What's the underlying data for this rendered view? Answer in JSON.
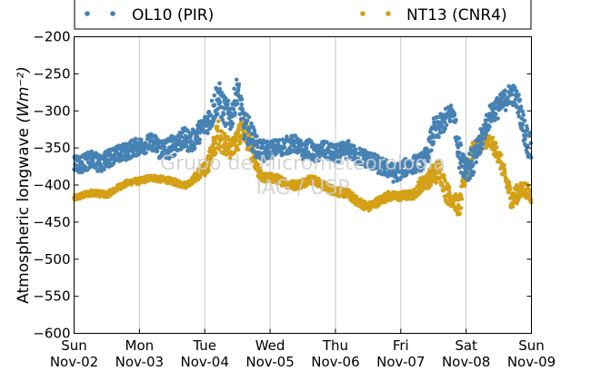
{
  "chart_data": {
    "type": "scatter",
    "ylabel": "Atmospheric longwave",
    "ylabel_unit": "(Wm⁻²)",
    "ylim": [
      -600,
      -200
    ],
    "yticks": [
      "−200",
      "−250",
      "−300",
      "−350",
      "−400",
      "−450",
      "−500",
      "−550",
      "−600"
    ],
    "ytick_values": [
      -200,
      -250,
      -300,
      -350,
      -400,
      -450,
      -500,
      -550,
      -600
    ],
    "xlim": [
      0,
      7
    ],
    "xticks": [
      {
        "day": "Sun",
        "date": "Nov-02"
      },
      {
        "day": "Mon",
        "date": "Nov-03"
      },
      {
        "day": "Tue",
        "date": "Nov-04"
      },
      {
        "day": "Wed",
        "date": "Nov-05"
      },
      {
        "day": "Thu",
        "date": "Nov-06"
      },
      {
        "day": "Fri",
        "date": "Nov-07"
      },
      {
        "day": "Sat",
        "date": "Nov-08"
      },
      {
        "day": "Sun",
        "date": "Nov-09"
      }
    ],
    "grid": "vertical",
    "legend_position": "top",
    "watermark": [
      "Grupo de Micrometeorologia",
      "IAG / USP"
    ],
    "series": [
      {
        "name": "OL10 (PIR)",
        "color": "#4682b4",
        "x": [
          0,
          0.1,
          0.2,
          0.3,
          0.4,
          0.5,
          0.6,
          0.7,
          0.8,
          0.9,
          1.0,
          1.1,
          1.2,
          1.3,
          1.4,
          1.5,
          1.6,
          1.7,
          1.8,
          1.9,
          2.0,
          2.1,
          2.2,
          2.3,
          2.4,
          2.5,
          2.6,
          2.7,
          2.8,
          2.9,
          3.0,
          3.1,
          3.2,
          3.3,
          3.4,
          3.5,
          3.6,
          3.7,
          3.8,
          3.9,
          4.0,
          4.1,
          4.2,
          4.3,
          4.4,
          4.5,
          4.6,
          4.7,
          4.8,
          4.9,
          5.0,
          5.1,
          5.2,
          5.3,
          5.4,
          5.5,
          5.6,
          5.7,
          5.8,
          5.9,
          6.0,
          6.1,
          6.2,
          6.3,
          6.4,
          6.5,
          6.6,
          6.7,
          6.8,
          6.9,
          7.0
        ],
        "y": [
          -370,
          -372,
          -368,
          -366,
          -372,
          -365,
          -360,
          -358,
          -355,
          -350,
          -348,
          -345,
          -342,
          -350,
          -352,
          -348,
          -340,
          -338,
          -342,
          -330,
          -320,
          -305,
          -280,
          -300,
          -310,
          -270,
          -320,
          -330,
          -350,
          -355,
          -352,
          -350,
          -348,
          -345,
          -345,
          -355,
          -350,
          -360,
          -352,
          -355,
          -358,
          -355,
          -352,
          -360,
          -362,
          -365,
          -370,
          -375,
          -378,
          -385,
          -380,
          -375,
          -372,
          -370,
          -360,
          -330,
          -320,
          -310,
          -300,
          -360,
          -375,
          -370,
          -350,
          -320,
          -300,
          -295,
          -285,
          -275,
          -290,
          -330,
          -355
        ],
        "y_spread": [
          12,
          12,
          12,
          12,
          12,
          12,
          12,
          12,
          12,
          12,
          12,
          12,
          12,
          15,
          15,
          15,
          15,
          15,
          15,
          15,
          15,
          20,
          25,
          20,
          20,
          20,
          20,
          20,
          15,
          15,
          12,
          12,
          12,
          12,
          12,
          12,
          12,
          12,
          12,
          12,
          12,
          12,
          12,
          12,
          12,
          12,
          12,
          12,
          12,
          12,
          12,
          12,
          12,
          12,
          12,
          20,
          15,
          15,
          12,
          20,
          20,
          20,
          20,
          15,
          15,
          15,
          15,
          15,
          15,
          20,
          20
        ]
      },
      {
        "name": "NT13 (CNR4)",
        "color": "#d4a017",
        "x": [
          0,
          0.1,
          0.2,
          0.3,
          0.4,
          0.5,
          0.6,
          0.7,
          0.8,
          0.9,
          1.0,
          1.1,
          1.2,
          1.3,
          1.4,
          1.5,
          1.6,
          1.7,
          1.8,
          1.9,
          2.0,
          2.1,
          2.2,
          2.3,
          2.4,
          2.5,
          2.6,
          2.7,
          2.8,
          2.9,
          3.0,
          3.1,
          3.2,
          3.3,
          3.4,
          3.5,
          3.6,
          3.7,
          3.8,
          3.9,
          4.0,
          4.1,
          4.2,
          4.3,
          4.4,
          4.5,
          4.6,
          4.7,
          4.8,
          4.9,
          5.0,
          5.1,
          5.2,
          5.3,
          5.4,
          5.5,
          5.6,
          5.7,
          5.8,
          5.9,
          6.0,
          6.1,
          6.2,
          6.3,
          6.4,
          6.5,
          6.6,
          6.7,
          6.8,
          6.9,
          7.0
        ],
        "y": [
          -418,
          -415,
          -412,
          -410,
          -412,
          -413,
          -408,
          -402,
          -398,
          -395,
          -395,
          -392,
          -390,
          -392,
          -393,
          -395,
          -398,
          -400,
          -395,
          -385,
          -380,
          -360,
          -330,
          -345,
          -350,
          -340,
          -320,
          -350,
          -380,
          -390,
          -390,
          -392,
          -395,
          -400,
          -400,
          -398,
          -392,
          -395,
          -400,
          -405,
          -408,
          -410,
          -412,
          -420,
          -425,
          -430,
          -425,
          -420,
          -415,
          -415,
          -415,
          -414,
          -413,
          -400,
          -395,
          -385,
          -380,
          -410,
          -420,
          -430,
          -380,
          -355,
          -345,
          -340,
          -345,
          -360,
          -390,
          -420,
          -410,
          -405,
          -415
        ],
        "y_spread": [
          4,
          4,
          4,
          4,
          4,
          4,
          4,
          4,
          4,
          4,
          4,
          4,
          4,
          4,
          4,
          4,
          4,
          4,
          4,
          8,
          10,
          15,
          20,
          15,
          15,
          15,
          20,
          15,
          10,
          6,
          6,
          6,
          6,
          6,
          6,
          6,
          6,
          6,
          6,
          6,
          6,
          6,
          6,
          6,
          6,
          6,
          6,
          6,
          6,
          6,
          6,
          6,
          6,
          10,
          10,
          15,
          15,
          15,
          10,
          15,
          15,
          12,
          10,
          10,
          10,
          12,
          12,
          15,
          12,
          10,
          10
        ]
      }
    ]
  }
}
